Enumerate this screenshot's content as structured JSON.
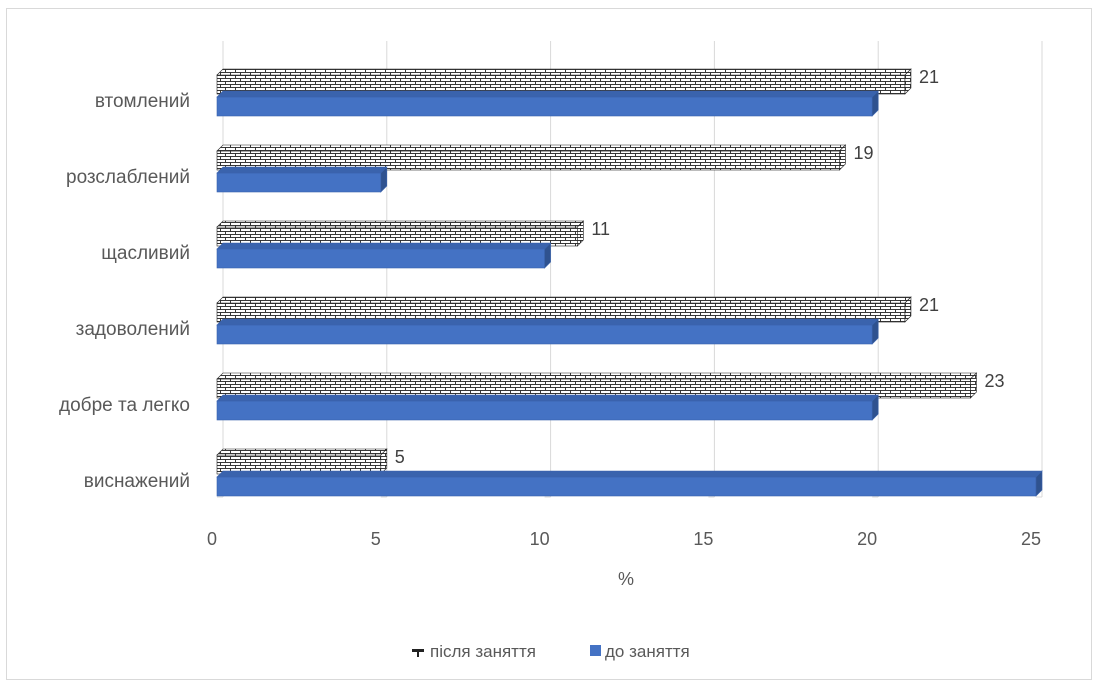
{
  "chart_data": {
    "type": "bar",
    "orientation": "horizontal",
    "title": "",
    "xlabel": "%",
    "ylabel": "",
    "xlim": [
      0,
      25
    ],
    "x_ticks": [
      0,
      5,
      10,
      15,
      20,
      25
    ],
    "grid": "vertical",
    "legend_position": "bottom",
    "categories": [
      "втомлений",
      "розслаблений",
      "щасливий",
      "задоволений",
      "добре та легко",
      "виснажений"
    ],
    "series": [
      {
        "name": "після заняття",
        "values": [
          21,
          19,
          11,
          21,
          23,
          5
        ],
        "pattern": "brick",
        "color": "#ffffff",
        "data_labels": true
      },
      {
        "name": "до заняття",
        "values": [
          20,
          5,
          10,
          20,
          20,
          25
        ],
        "color": "#4472c4",
        "data_labels": false
      }
    ]
  }
}
